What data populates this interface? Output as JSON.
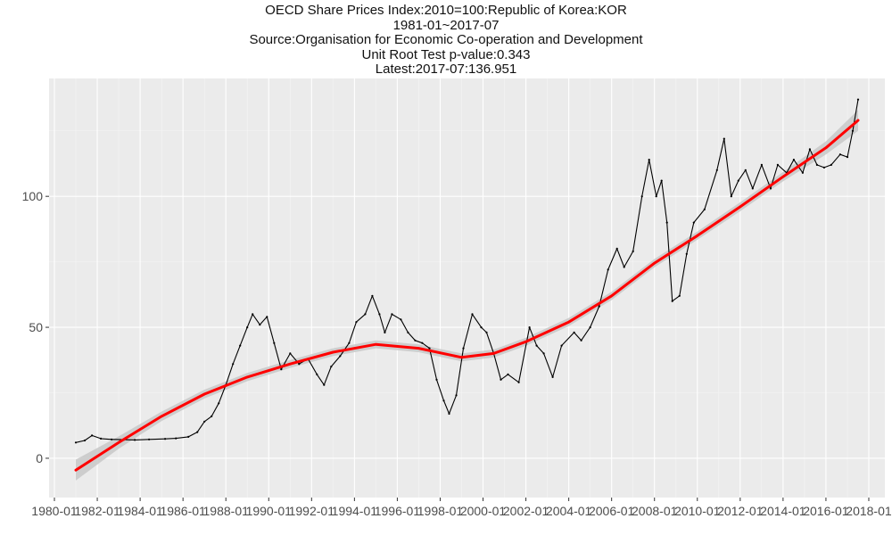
{
  "title_lines": [
    "OECD Share Prices Index:2010=100:Republic of Korea:KOR",
    "1981-01~2017-07",
    "Source:Organisation for Economic Co-operation and Development",
    "Unit Root Test p-value:0.343",
    "Latest:2017-07:136.951"
  ],
  "chart_data": {
    "type": "line",
    "title": "OECD Share Prices Index:2010=100:Republic of Korea:KOR",
    "xlabel": "",
    "ylabel": "",
    "grid": true,
    "xlim": [
      "1979-10",
      "2018-10"
    ],
    "ylim": [
      -15,
      145
    ],
    "x_ticks": [
      "1980-01",
      "1982-01",
      "1984-01",
      "1986-01",
      "1988-01",
      "1990-01",
      "1992-01",
      "1994-01",
      "1996-01",
      "1998-01",
      "2000-01",
      "2002-01",
      "2004-01",
      "2006-01",
      "2008-01",
      "2010-01",
      "2012-01",
      "2014-01",
      "2016-01",
      "2018-01"
    ],
    "y_ticks": [
      0,
      50,
      100
    ],
    "series": [
      {
        "kind": "data",
        "color": "#000000",
        "points": [
          [
            "1981-01",
            6
          ],
          [
            "1981-06",
            6.8
          ],
          [
            "1981-10",
            8.7
          ],
          [
            "1982-03",
            7.5
          ],
          [
            "1982-09",
            7.2
          ],
          [
            "1983-04",
            7.1
          ],
          [
            "1983-10",
            7
          ],
          [
            "1984-06",
            7.2
          ],
          [
            "1985-03",
            7.4
          ],
          [
            "1985-09",
            7.6
          ],
          [
            "1986-04",
            8.2
          ],
          [
            "1986-09",
            10
          ],
          [
            "1987-01",
            14
          ],
          [
            "1987-05",
            16
          ],
          [
            "1987-09",
            21
          ],
          [
            "1988-01",
            28
          ],
          [
            "1988-05",
            36
          ],
          [
            "1988-09",
            43
          ],
          [
            "1989-01",
            50
          ],
          [
            "1989-04",
            55
          ],
          [
            "1989-08",
            51
          ],
          [
            "1989-12",
            54
          ],
          [
            "1990-04",
            44
          ],
          [
            "1990-08",
            34
          ],
          [
            "1991-01",
            40
          ],
          [
            "1991-06",
            36
          ],
          [
            "1991-11",
            38
          ],
          [
            "1992-04",
            32
          ],
          [
            "1992-08",
            28
          ],
          [
            "1992-12",
            35
          ],
          [
            "1993-05",
            39
          ],
          [
            "1993-10",
            44
          ],
          [
            "1994-02",
            52
          ],
          [
            "1994-07",
            55
          ],
          [
            "1994-11",
            62
          ],
          [
            "1995-03",
            55
          ],
          [
            "1995-06",
            48
          ],
          [
            "1995-10",
            55
          ],
          [
            "1996-03",
            53
          ],
          [
            "1996-07",
            48
          ],
          [
            "1996-11",
            45
          ],
          [
            "1997-03",
            44
          ],
          [
            "1997-07",
            42
          ],
          [
            "1997-11",
            30
          ],
          [
            "1998-03",
            22
          ],
          [
            "1998-06",
            17
          ],
          [
            "1998-10",
            24
          ],
          [
            "1999-02",
            42
          ],
          [
            "1999-07",
            55
          ],
          [
            "1999-12",
            50
          ],
          [
            "2000-03",
            48
          ],
          [
            "2000-07",
            40
          ],
          [
            "2000-11",
            30
          ],
          [
            "2001-03",
            32
          ],
          [
            "2001-09",
            29
          ],
          [
            "2002-03",
            50
          ],
          [
            "2002-07",
            43
          ],
          [
            "2002-11",
            40
          ],
          [
            "2003-04",
            31
          ],
          [
            "2003-09",
            43
          ],
          [
            "2004-04",
            48
          ],
          [
            "2004-08",
            45
          ],
          [
            "2005-01",
            50
          ],
          [
            "2005-06",
            58
          ],
          [
            "2005-11",
            72
          ],
          [
            "2006-04",
            80
          ],
          [
            "2006-08",
            73
          ],
          [
            "2007-01",
            79
          ],
          [
            "2007-06",
            100
          ],
          [
            "2007-10",
            114
          ],
          [
            "2008-02",
            100
          ],
          [
            "2008-05",
            106
          ],
          [
            "2008-08",
            90
          ],
          [
            "2008-11",
            60
          ],
          [
            "2009-03",
            62
          ],
          [
            "2009-07",
            78
          ],
          [
            "2009-11",
            90
          ],
          [
            "2010-05",
            95
          ],
          [
            "2010-12",
            110
          ],
          [
            "2011-04",
            122
          ],
          [
            "2011-08",
            100
          ],
          [
            "2011-12",
            106
          ],
          [
            "2012-04",
            110
          ],
          [
            "2012-08",
            103
          ],
          [
            "2013-01",
            112
          ],
          [
            "2013-06",
            103
          ],
          [
            "2013-10",
            112
          ],
          [
            "2014-03",
            109
          ],
          [
            "2014-07",
            114
          ],
          [
            "2014-12",
            109
          ],
          [
            "2015-04",
            118
          ],
          [
            "2015-08",
            112
          ],
          [
            "2015-12",
            111
          ],
          [
            "2016-04",
            112
          ],
          [
            "2016-09",
            116
          ],
          [
            "2017-01",
            115
          ],
          [
            "2017-04",
            125
          ],
          [
            "2017-07",
            136.951
          ]
        ]
      },
      {
        "kind": "smooth",
        "color": "#ff0000",
        "band_color": "#c8c8c8",
        "points": [
          [
            "1981-01",
            -4.5
          ],
          [
            "1983-01",
            6
          ],
          [
            "1985-01",
            16
          ],
          [
            "1987-01",
            24.5
          ],
          [
            "1989-01",
            31
          ],
          [
            "1991-01",
            36
          ],
          [
            "1993-01",
            40.5
          ],
          [
            "1995-01",
            43.5
          ],
          [
            "1997-01",
            42
          ],
          [
            "1999-01",
            38.5
          ],
          [
            "2000-07",
            40
          ],
          [
            "2002-01",
            44.5
          ],
          [
            "2004-01",
            52
          ],
          [
            "2006-01",
            62
          ],
          [
            "2008-01",
            74.5
          ],
          [
            "2010-01",
            85
          ],
          [
            "2012-01",
            96
          ],
          [
            "2014-01",
            107.5
          ],
          [
            "2016-01",
            118.5
          ],
          [
            "2017-07",
            129
          ]
        ],
        "band_halfwidth": [
          [
            "1981-01",
            4
          ],
          [
            "1982-06",
            2.5
          ],
          [
            "1985-01",
            1.8
          ],
          [
            "1990-01",
            1.5
          ],
          [
            "1995-01",
            1.5
          ],
          [
            "2000-01",
            1.5
          ],
          [
            "2005-01",
            1.6
          ],
          [
            "2010-01",
            1.6
          ],
          [
            "2014-01",
            1.8
          ],
          [
            "2016-01",
            2.5
          ],
          [
            "2017-07",
            4
          ]
        ]
      }
    ]
  }
}
